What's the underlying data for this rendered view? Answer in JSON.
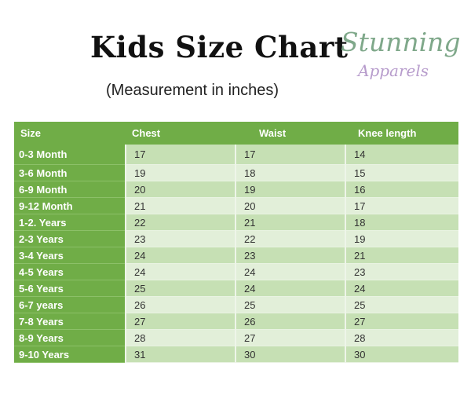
{
  "title": "Kids Size Chart",
  "subtitle": "(Measurement in inches)",
  "logo": {
    "line1": "Stunning",
    "line2": "Apparels"
  },
  "colors": {
    "header": "#70ad47",
    "row_dark": "#c6e0b4",
    "row_light": "#e2efd9"
  },
  "table": {
    "columns": [
      "Size",
      "Chest",
      "Waist",
      "Knee  length"
    ],
    "rows": [
      [
        "0-3 Month",
        "17",
        "17",
        "14"
      ],
      [
        "3-6 Month",
        "19",
        "18",
        "15"
      ],
      [
        "6-9 Month",
        "20",
        "19",
        "16"
      ],
      [
        "9-12 Month",
        "21",
        "20",
        "17"
      ],
      [
        "1-2. Years",
        "22",
        "21",
        "18"
      ],
      [
        "2-3 Years",
        "23",
        "22",
        "19"
      ],
      [
        "3-4 Years",
        "24",
        "23",
        "21"
      ],
      [
        "4-5 Years",
        "24",
        "24",
        "23"
      ],
      [
        "5-6 Years",
        "25",
        "24",
        "24"
      ],
      [
        "6-7 years",
        "26",
        "25",
        "25"
      ],
      [
        "7-8 Years",
        "27",
        "26",
        "27"
      ],
      [
        "8-9 Years",
        "28",
        "27",
        "28"
      ],
      [
        "9-10 Years",
        "31",
        "30",
        "30"
      ]
    ]
  }
}
